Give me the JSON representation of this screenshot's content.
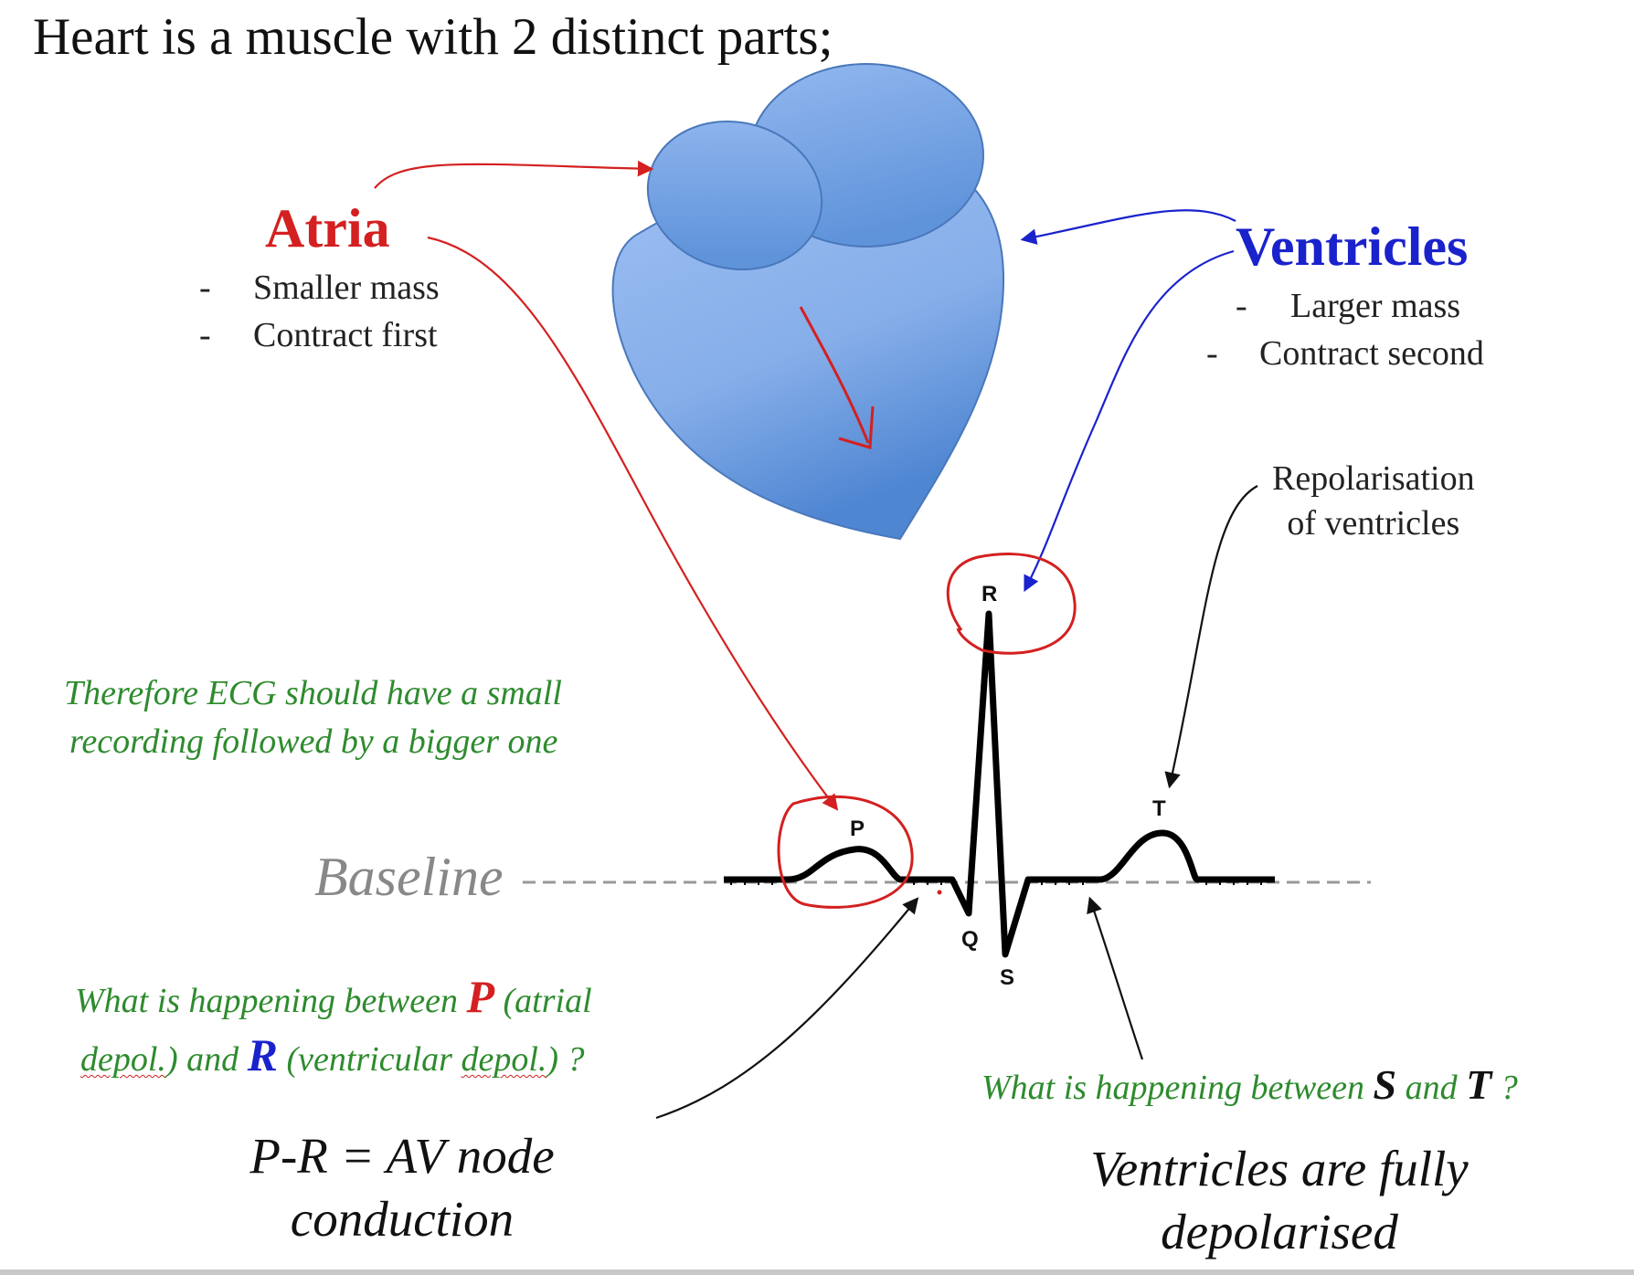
{
  "title": "Heart is a muscle with 2 distinct parts;",
  "atria": {
    "heading": "Atria",
    "bullets": [
      "Smaller mass",
      "Contract first"
    ]
  },
  "ventricles": {
    "heading": "Ventricles",
    "bullets": [
      "Larger mass",
      "Contract second"
    ]
  },
  "bullet_marker": "-",
  "repolarisation_note": {
    "line1": "Repolarisation",
    "line2": "of ventricles"
  },
  "ecg_note": {
    "line1": "Therefore ECG should have a small",
    "line2": "recording followed by a bigger one"
  },
  "baseline_label": "Baseline",
  "ecg_labels": {
    "p": "P",
    "q": "Q",
    "r": "R",
    "s": "S",
    "t": "T"
  },
  "question_pr": {
    "pre": "What is happening between ",
    "p": "P",
    "mid1": " (atrial",
    "word_depol_1": "depol.",
    "mid2": ") and ",
    "r": "R",
    "mid3": " (ventricular ",
    "word_depol_2": "depol.",
    "end": ") ?"
  },
  "answer_pr": {
    "line1": "P-R = AV node",
    "line2": "conduction"
  },
  "question_st": {
    "pre": "What is happening between ",
    "s": "S",
    "mid": " and ",
    "t": "T",
    "end": " ?"
  },
  "answer_st": {
    "line1": "Ventricles are fully",
    "line2": "depolarised"
  },
  "colors": {
    "atria_red": "#d42020",
    "ventricles_blue": "#1a22cc",
    "note_green": "#2e8b2e",
    "heart_blue": "#8fb4ec"
  }
}
